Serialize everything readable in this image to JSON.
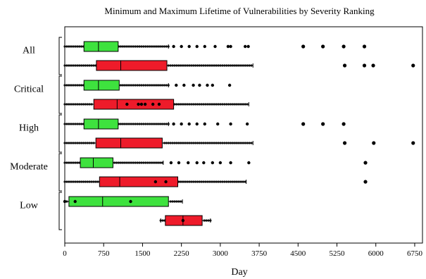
{
  "chart_data": {
    "type": "box",
    "title": "Minimum and Maximum Lifetime of Vulnerabilities by Severity Ranking",
    "xlabel": "Day",
    "ylabel": "",
    "xlim": [
      0,
      6900
    ],
    "xticks": [
      0,
      750,
      1500,
      2250,
      3000,
      3750,
      4500,
      5250,
      6000,
      6750
    ],
    "legend": "none",
    "series_colors": {
      "min": "#3ee23e",
      "max": "#ee1b2a"
    },
    "groups": [
      {
        "label": "All",
        "boxes": [
          {
            "kind": "min",
            "whisker_low": 0,
            "q1": 370,
            "median": 650,
            "q3": 1030,
            "whisker_high": 2000,
            "outliers": [
              2100,
              2250,
              2400,
              2550,
              2700,
              2900,
              3150,
              3200,
              3480,
              3540,
              4600,
              4980,
              5380,
              5780
            ]
          },
          {
            "kind": "max",
            "whisker_low": 0,
            "q1": 610,
            "median": 1080,
            "q3": 1970,
            "whisker_high": 3630,
            "outliers": [
              5400,
              5780,
              5950,
              6720
            ]
          }
        ]
      },
      {
        "label": "Critical",
        "boxes": [
          {
            "kind": "min",
            "whisker_low": 0,
            "q1": 370,
            "median": 650,
            "q3": 1050,
            "whisker_high": 2000,
            "outliers": [
              2150,
              2300,
              2480,
              2600,
              2750,
              2850,
              3180
            ]
          },
          {
            "kind": "max",
            "whisker_low": 0,
            "q1": 560,
            "median": 1010,
            "q3": 2100,
            "whisker_high": 3550,
            "outliers": [
              1200,
              1420,
              1480,
              1550,
              1700,
              1820
            ]
          }
        ]
      },
      {
        "label": "High",
        "boxes": [
          {
            "kind": "min",
            "whisker_low": 0,
            "q1": 370,
            "median": 650,
            "q3": 1030,
            "whisker_high": 2000,
            "outliers": [
              2100,
              2250,
              2400,
              2550,
              2700,
              2950,
              3200,
              3520,
              4600,
              4980,
              5380
            ]
          },
          {
            "kind": "max",
            "whisker_low": 0,
            "q1": 600,
            "median": 1080,
            "q3": 1880,
            "whisker_high": 3630,
            "outliers": [
              5400,
              5960,
              6720
            ]
          }
        ]
      },
      {
        "label": "Moderate",
        "boxes": [
          {
            "kind": "min",
            "whisker_low": 0,
            "q1": 300,
            "median": 550,
            "q3": 930,
            "whisker_high": 1900,
            "outliers": [
              2050,
              2200,
              2380,
              2550,
              2680,
              2850,
              3000,
              3200,
              3550,
              5800
            ]
          },
          {
            "kind": "max",
            "whisker_low": 0,
            "q1": 670,
            "median": 1060,
            "q3": 2180,
            "whisker_high": 3500,
            "outliers": [
              1750,
              1950,
              5800
            ]
          }
        ]
      },
      {
        "label": "Low",
        "boxes": [
          {
            "kind": "min",
            "whisker_low": 0,
            "q1": 80,
            "median": 730,
            "q3": 2000,
            "whisker_high": 2270,
            "outliers": [
              0,
              200,
              1270
            ]
          },
          {
            "kind": "max",
            "whisker_low": 1850,
            "q1": 1940,
            "median": 2280,
            "q3": 2650,
            "whisker_high": 2810,
            "outliers": [
              2280
            ]
          }
        ]
      }
    ]
  }
}
